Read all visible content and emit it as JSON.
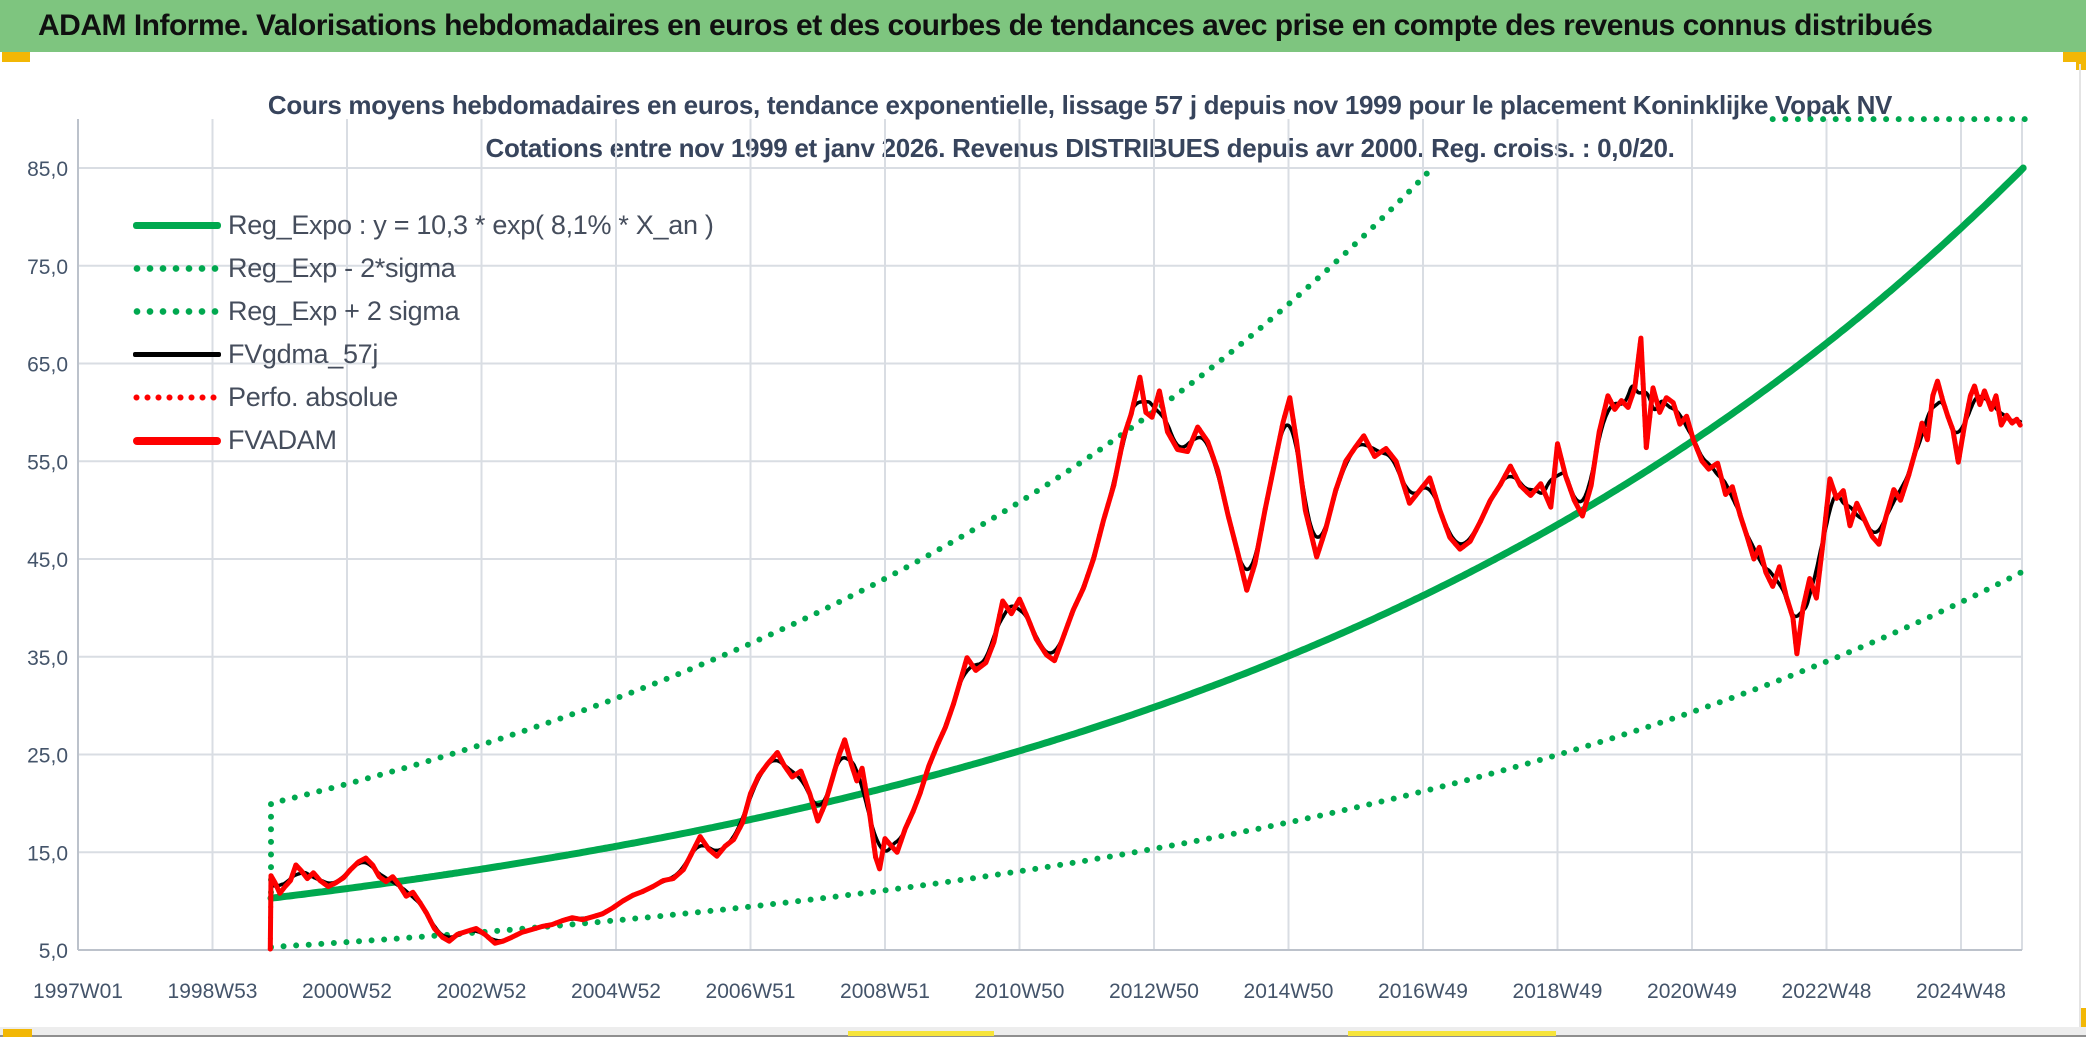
{
  "header": {
    "title": "ADAM Informe. Valorisations hebdomadaires en euros et des courbes de tendances avec prise en compte des revenus connus distribués"
  },
  "colors": {
    "header_bg": "#7EC57F",
    "header_text": "#101010",
    "title_text": "#37445C",
    "axis_text": "#44546A",
    "grid": "#D9DDE3",
    "axis_line": "#BCC2CB",
    "green": "#00A84F",
    "red": "#FE0000",
    "black": "#000000",
    "accent_orange": "#F2B705",
    "accent_yellow": "#F6E43B",
    "statusbar_bg": "#EDEDED"
  },
  "chart_data": {
    "type": "line",
    "title": "Cours moyens hebdomadaires en euros, tendance exponentielle, lissage 57 j depuis nov 1999 pour le placement Koninklijke Vopak NV",
    "subtitle": "Cotations entre nov 1999 et janv 2026. Revenus DISTRIBUES depuis avr 2000. Reg. croiss. : 0,0/20.",
    "legend_position": "top-left-inside",
    "grid": true,
    "x_axis": {
      "tick_labels": [
        "1997W01",
        "1998W53",
        "2000W52",
        "2002W52",
        "2004W52",
        "2006W51",
        "2008W51",
        "2010W50",
        "2012W50",
        "2014W50",
        "2016W49",
        "2018W49",
        "2020W49",
        "2022W48",
        "2024W48"
      ],
      "tick_years": [
        1997,
        1999,
        2001,
        2003,
        2005,
        2007,
        2009,
        2011,
        2013,
        2015,
        2017,
        2019,
        2021,
        2023,
        2025
      ],
      "range_years": [
        1997.0,
        2026.05
      ]
    },
    "y_axis": {
      "tick_labels": [
        "85,0",
        "75,0",
        "65,0",
        "55,0",
        "45,0",
        "35,0",
        "25,0",
        "15,0",
        "5,0"
      ],
      "tick_values": [
        85,
        75,
        65,
        55,
        45,
        35,
        25,
        15,
        5
      ],
      "range": [
        5,
        90
      ]
    },
    "series": [
      {
        "name": "Reg_Expo : y = 10,3 * exp( 8,1% *  X_an )",
        "type": "exp_trend",
        "color": "#00A84F",
        "line": "solid",
        "width": 7,
        "a": 10.3,
        "k": 0.081,
        "x0_year": 1999.87,
        "end_year": 2025.97
      },
      {
        "name": "Reg_Exp - 2*sigma",
        "type": "exp_trend",
        "color": "#00A84F",
        "line": "dotted",
        "width": 6,
        "a": 5.3,
        "k": 0.081,
        "x0_year": 1999.87,
        "end_year": 2025.95
      },
      {
        "name": "Reg_Exp + 2 sigma",
        "type": "exp_trend",
        "color": "#00A84F",
        "line": "dotted",
        "width": 6,
        "a": 20.0,
        "k": 0.0838,
        "x0_year": 1999.87,
        "end_year": 2025.95,
        "start_from_value": 10.9,
        "clip_above": 85.0,
        "ceiling_segment": {
          "from_year": 2022.2,
          "to_year": 2025.95,
          "value": 90
        }
      },
      {
        "name": "FVgdma_57j",
        "type": "moving_average_of",
        "source": 5,
        "color": "#000000",
        "line": "solid",
        "width": 3.5,
        "window_years": 0.32
      },
      {
        "name": "Perfo. absolue",
        "type": "same_as",
        "source": 5,
        "color": "#FE0000",
        "line": "dotted",
        "width": 5
      },
      {
        "name": "FVADAM",
        "type": "data",
        "color": "#FE0000",
        "line": "solid",
        "width": 5,
        "points": [
          [
            1999.86,
            5.1
          ],
          [
            1999.87,
            12.6
          ],
          [
            1999.93,
            11.9
          ],
          [
            2000.0,
            10.8
          ],
          [
            2000.08,
            11.5
          ],
          [
            2000.16,
            12.1
          ],
          [
            2000.24,
            13.7
          ],
          [
            2000.32,
            13.1
          ],
          [
            2000.41,
            12.3
          ],
          [
            2000.5,
            12.9
          ],
          [
            2000.6,
            12.1
          ],
          [
            2000.72,
            11.5
          ],
          [
            2000.84,
            11.9
          ],
          [
            2000.95,
            12.4
          ],
          [
            2001.05,
            13.2
          ],
          [
            2001.17,
            14.0
          ],
          [
            2001.28,
            14.4
          ],
          [
            2001.38,
            13.7
          ],
          [
            2001.48,
            12.5
          ],
          [
            2001.58,
            12.0
          ],
          [
            2001.68,
            12.5
          ],
          [
            2001.78,
            11.6
          ],
          [
            2001.88,
            10.5
          ],
          [
            2001.98,
            10.9
          ],
          [
            2002.08,
            9.9
          ],
          [
            2002.18,
            8.8
          ],
          [
            2002.3,
            7.2
          ],
          [
            2002.42,
            6.3
          ],
          [
            2002.52,
            5.9
          ],
          [
            2002.64,
            6.6
          ],
          [
            2002.78,
            6.9
          ],
          [
            2002.92,
            7.2
          ],
          [
            2003.05,
            6.6
          ],
          [
            2003.2,
            5.7
          ],
          [
            2003.32,
            5.9
          ],
          [
            2003.45,
            6.3
          ],
          [
            2003.6,
            6.8
          ],
          [
            2003.75,
            7.1
          ],
          [
            2003.9,
            7.4
          ],
          [
            2004.05,
            7.6
          ],
          [
            2004.2,
            8.0
          ],
          [
            2004.35,
            8.3
          ],
          [
            2004.5,
            8.1
          ],
          [
            2004.65,
            8.4
          ],
          [
            2004.8,
            8.7
          ],
          [
            2004.95,
            9.3
          ],
          [
            2005.1,
            10.0
          ],
          [
            2005.25,
            10.6
          ],
          [
            2005.4,
            11.0
          ],
          [
            2005.55,
            11.5
          ],
          [
            2005.7,
            12.1
          ],
          [
            2005.85,
            12.3
          ],
          [
            2006.0,
            13.2
          ],
          [
            2006.12,
            14.8
          ],
          [
            2006.25,
            16.6
          ],
          [
            2006.38,
            15.3
          ],
          [
            2006.5,
            14.6
          ],
          [
            2006.62,
            15.6
          ],
          [
            2006.75,
            16.3
          ],
          [
            2006.88,
            18.0
          ],
          [
            2007.0,
            21.0
          ],
          [
            2007.12,
            22.8
          ],
          [
            2007.25,
            24.0
          ],
          [
            2007.4,
            25.2
          ],
          [
            2007.5,
            23.9
          ],
          [
            2007.62,
            22.7
          ],
          [
            2007.75,
            23.3
          ],
          [
            2007.88,
            21.0
          ],
          [
            2008.0,
            18.2
          ],
          [
            2008.1,
            19.8
          ],
          [
            2008.22,
            22.6
          ],
          [
            2008.32,
            25.0
          ],
          [
            2008.4,
            26.5
          ],
          [
            2008.5,
            24.0
          ],
          [
            2008.58,
            22.3
          ],
          [
            2008.66,
            23.6
          ],
          [
            2008.76,
            19.5
          ],
          [
            2008.86,
            14.5
          ],
          [
            2008.92,
            13.3
          ],
          [
            2009.0,
            16.4
          ],
          [
            2009.1,
            15.6
          ],
          [
            2009.18,
            15.0
          ],
          [
            2009.3,
            17.4
          ],
          [
            2009.42,
            19.2
          ],
          [
            2009.52,
            21.0
          ],
          [
            2009.65,
            23.8
          ],
          [
            2009.78,
            26.0
          ],
          [
            2009.9,
            27.8
          ],
          [
            2010.02,
            30.2
          ],
          [
            2010.14,
            33.0
          ],
          [
            2010.22,
            34.9
          ],
          [
            2010.35,
            33.6
          ],
          [
            2010.5,
            34.4
          ],
          [
            2010.62,
            36.5
          ],
          [
            2010.75,
            40.7
          ],
          [
            2010.88,
            39.4
          ],
          [
            2011.0,
            40.9
          ],
          [
            2011.12,
            39.0
          ],
          [
            2011.25,
            36.8
          ],
          [
            2011.4,
            35.2
          ],
          [
            2011.52,
            34.6
          ],
          [
            2011.65,
            37.0
          ],
          [
            2011.8,
            39.8
          ],
          [
            2011.95,
            42.0
          ],
          [
            2012.1,
            45.0
          ],
          [
            2012.25,
            49.0
          ],
          [
            2012.4,
            52.5
          ],
          [
            2012.55,
            57.5
          ],
          [
            2012.66,
            59.8
          ],
          [
            2012.79,
            63.6
          ],
          [
            2012.88,
            60.0
          ],
          [
            2012.97,
            59.5
          ],
          [
            2013.08,
            62.2
          ],
          [
            2013.2,
            58.0
          ],
          [
            2013.35,
            56.2
          ],
          [
            2013.5,
            56.0
          ],
          [
            2013.65,
            58.5
          ],
          [
            2013.8,
            57.0
          ],
          [
            2013.95,
            54.0
          ],
          [
            2014.1,
            49.5
          ],
          [
            2014.25,
            45.5
          ],
          [
            2014.38,
            41.8
          ],
          [
            2014.5,
            44.5
          ],
          [
            2014.65,
            50.0
          ],
          [
            2014.8,
            55.0
          ],
          [
            2014.92,
            59.0
          ],
          [
            2015.02,
            61.5
          ],
          [
            2015.12,
            57.0
          ],
          [
            2015.25,
            50.0
          ],
          [
            2015.42,
            45.2
          ],
          [
            2015.55,
            48.0
          ],
          [
            2015.7,
            52.0
          ],
          [
            2015.85,
            55.0
          ],
          [
            2016.0,
            56.5
          ],
          [
            2016.12,
            57.6
          ],
          [
            2016.28,
            55.5
          ],
          [
            2016.45,
            56.3
          ],
          [
            2016.6,
            55.0
          ],
          [
            2016.8,
            50.7
          ],
          [
            2016.95,
            52.0
          ],
          [
            2017.1,
            53.3
          ],
          [
            2017.25,
            50.0
          ],
          [
            2017.4,
            47.2
          ],
          [
            2017.55,
            46.0
          ],
          [
            2017.7,
            46.8
          ],
          [
            2017.85,
            48.8
          ],
          [
            2018.0,
            51.0
          ],
          [
            2018.15,
            52.6
          ],
          [
            2018.3,
            54.5
          ],
          [
            2018.45,
            52.5
          ],
          [
            2018.6,
            51.5
          ],
          [
            2018.75,
            52.7
          ],
          [
            2018.9,
            50.3
          ],
          [
            2019.0,
            56.8
          ],
          [
            2019.12,
            53.5
          ],
          [
            2019.25,
            51.0
          ],
          [
            2019.37,
            49.4
          ],
          [
            2019.5,
            52.5
          ],
          [
            2019.62,
            58.0
          ],
          [
            2019.75,
            61.7
          ],
          [
            2019.85,
            60.3
          ],
          [
            2019.95,
            61.2
          ],
          [
            2020.05,
            60.5
          ],
          [
            2020.15,
            62.5
          ],
          [
            2020.24,
            67.6
          ],
          [
            2020.32,
            56.4
          ],
          [
            2020.42,
            62.5
          ],
          [
            2020.52,
            60.0
          ],
          [
            2020.62,
            61.5
          ],
          [
            2020.72,
            61.0
          ],
          [
            2020.82,
            58.8
          ],
          [
            2020.92,
            59.6
          ],
          [
            2021.02,
            57.2
          ],
          [
            2021.15,
            55.0
          ],
          [
            2021.25,
            54.2
          ],
          [
            2021.38,
            54.8
          ],
          [
            2021.5,
            51.6
          ],
          [
            2021.6,
            52.4
          ],
          [
            2021.72,
            49.4
          ],
          [
            2021.82,
            47.3
          ],
          [
            2021.92,
            45.0
          ],
          [
            2022.0,
            46.2
          ],
          [
            2022.1,
            43.6
          ],
          [
            2022.2,
            42.2
          ],
          [
            2022.3,
            44.2
          ],
          [
            2022.4,
            41.2
          ],
          [
            2022.5,
            39.0
          ],
          [
            2022.56,
            35.3
          ],
          [
            2022.65,
            40.0
          ],
          [
            2022.75,
            43.0
          ],
          [
            2022.85,
            41.0
          ],
          [
            2022.95,
            46.8
          ],
          [
            2023.05,
            53.2
          ],
          [
            2023.15,
            51.2
          ],
          [
            2023.25,
            52.0
          ],
          [
            2023.35,
            48.4
          ],
          [
            2023.45,
            50.7
          ],
          [
            2023.58,
            48.8
          ],
          [
            2023.68,
            47.3
          ],
          [
            2023.78,
            46.5
          ],
          [
            2023.88,
            49.2
          ],
          [
            2024.0,
            52.1
          ],
          [
            2024.1,
            51.0
          ],
          [
            2024.22,
            53.5
          ],
          [
            2024.32,
            56.0
          ],
          [
            2024.42,
            58.9
          ],
          [
            2024.5,
            57.2
          ],
          [
            2024.58,
            61.7
          ],
          [
            2024.65,
            63.2
          ],
          [
            2024.73,
            61.2
          ],
          [
            2024.8,
            59.7
          ],
          [
            2024.88,
            58.2
          ],
          [
            2024.96,
            54.9
          ],
          [
            2025.05,
            58.6
          ],
          [
            2025.14,
            61.7
          ],
          [
            2025.2,
            62.7
          ],
          [
            2025.28,
            60.8
          ],
          [
            2025.35,
            62.2
          ],
          [
            2025.45,
            60.3
          ],
          [
            2025.52,
            61.7
          ],
          [
            2025.6,
            58.7
          ],
          [
            2025.68,
            59.7
          ],
          [
            2025.76,
            58.9
          ],
          [
            2025.83,
            59.3
          ],
          [
            2025.88,
            58.7
          ]
        ]
      }
    ]
  }
}
